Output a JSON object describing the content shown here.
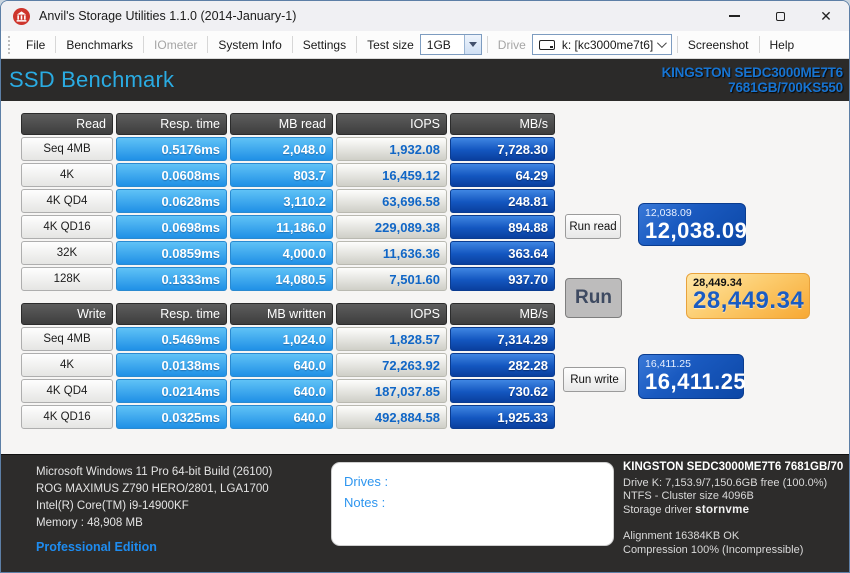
{
  "window": {
    "title": "Anvil's Storage Utilities 1.1.0 (2014-January-1)"
  },
  "menu": {
    "items": [
      {
        "label": "File",
        "disabled": false
      },
      {
        "label": "Benchmarks",
        "disabled": false
      },
      {
        "label": "IOmeter",
        "disabled": true
      },
      {
        "label": "System Info",
        "disabled": false
      },
      {
        "label": "Settings",
        "disabled": false
      }
    ],
    "test_size_label": "Test size",
    "test_size_value": "1GB",
    "drive_label": "Drive",
    "drive_value": "k: [kc3000me7t6]",
    "screenshot_label": "Screenshot",
    "help_label": "Help"
  },
  "header": {
    "title": "SSD Benchmark",
    "device_line1": "KINGSTON SEDC3000ME7T6",
    "device_line2": "7681GB/700KS550",
    "title_color": "#2aabe2",
    "device_color": "#1774d2"
  },
  "read_table": {
    "headers": [
      "Read",
      "Resp. time",
      "MB read",
      "IOPS",
      "MB/s"
    ],
    "rows": [
      {
        "label": "Seq 4MB",
        "resp": "0.5176ms",
        "mb": "2,048.0",
        "iops": "1,932.08",
        "mbs": "7,728.30"
      },
      {
        "label": "4K",
        "resp": "0.0608ms",
        "mb": "803.7",
        "iops": "16,459.12",
        "mbs": "64.29"
      },
      {
        "label": "4K QD4",
        "resp": "0.0628ms",
        "mb": "3,110.2",
        "iops": "63,696.58",
        "mbs": "248.81"
      },
      {
        "label": "4K QD16",
        "resp": "0.0698ms",
        "mb": "11,186.0",
        "iops": "229,089.38",
        "mbs": "894.88"
      },
      {
        "label": "32K",
        "resp": "0.0859ms",
        "mb": "4,000.0",
        "iops": "11,636.36",
        "mbs": "363.64"
      },
      {
        "label": "128K",
        "resp": "0.1333ms",
        "mb": "14,080.5",
        "iops": "7,501.60",
        "mbs": "937.70"
      }
    ]
  },
  "write_table": {
    "headers": [
      "Write",
      "Resp. time",
      "MB written",
      "IOPS",
      "MB/s"
    ],
    "rows": [
      {
        "label": "Seq 4MB",
        "resp": "0.5469ms",
        "mb": "1,024.0",
        "iops": "1,828.57",
        "mbs": "7,314.29"
      },
      {
        "label": "4K",
        "resp": "0.0138ms",
        "mb": "640.0",
        "iops": "72,263.92",
        "mbs": "282.28"
      },
      {
        "label": "4K QD4",
        "resp": "0.0214ms",
        "mb": "640.0",
        "iops": "187,037.85",
        "mbs": "730.62"
      },
      {
        "label": "4K QD16",
        "resp": "0.0325ms",
        "mb": "640.0",
        "iops": "492,884.58",
        "mbs": "1,925.33"
      }
    ]
  },
  "actions": {
    "run_read_label": "Run read",
    "run_label": "Run",
    "run_write_label": "Run write"
  },
  "scores": {
    "read": {
      "small": "12,038.09",
      "big": "12,038.09"
    },
    "total": {
      "small": "28,449.34",
      "big": "28,449.34"
    },
    "write": {
      "small": "16,411.25",
      "big": "16,411.25"
    }
  },
  "footer": {
    "system_lines": [
      "Microsoft Windows 11 Pro 64-bit Build (26100)",
      "ROG MAXIMUS Z790 HERO/2801, LGA1700",
      "Intel(R) Core(TM) i9-14900KF",
      "Memory : 48,908 MB"
    ],
    "edition": "Professional Edition",
    "notes_box": {
      "drives_label": "Drives :",
      "notes_label": "Notes :"
    },
    "drive_info": {
      "title": "KINGSTON SEDC3000ME7T6 7681GB/70",
      "line1": "Drive K: 7,153.9/7,150.6GB free (100.0%)",
      "line2": "NTFS - Cluster size 4096B",
      "storage_driver_label": "Storage driver ",
      "storage_driver_value": "stornvme",
      "line4": "Alignment 16384KB OK",
      "line5": "Compression 100% (Incompressible)"
    }
  }
}
